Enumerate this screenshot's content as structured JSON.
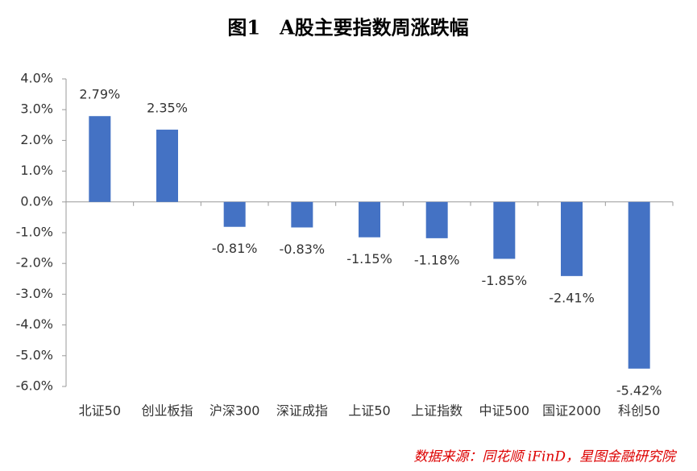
{
  "chart_data": {
    "type": "bar",
    "title": "图1　A股主要指数周涨跌幅",
    "source": "数据来源：同花顺 iFinD，星图金融研究院",
    "categories": [
      "北证50",
      "创业板指",
      "沪深300",
      "深证成指",
      "上证50",
      "上证指数",
      "中证500",
      "国证2000",
      "科创50"
    ],
    "values": [
      2.79,
      2.35,
      -0.81,
      -0.83,
      -1.15,
      -1.18,
      -1.85,
      -2.41,
      -5.42
    ],
    "value_labels": [
      "2.79%",
      "2.35%",
      "-0.81%",
      "-0.83%",
      "-1.15%",
      "-1.18%",
      "-1.85%",
      "-2.41%",
      "-5.42%"
    ],
    "color": "#4472c4",
    "ylim": [
      -6,
      4
    ],
    "yticks": [
      {
        "value": 4,
        "label": "4.0%"
      },
      {
        "value": 3,
        "label": "3.0%"
      },
      {
        "value": 2,
        "label": "2.0%"
      },
      {
        "value": 1,
        "label": "1.0%"
      },
      {
        "value": 0,
        "label": "0.0%"
      },
      {
        "value": -1,
        "label": "-1.0%"
      },
      {
        "value": -2,
        "label": "-2.0%"
      },
      {
        "value": -3,
        "label": "-3.0%"
      },
      {
        "value": -4,
        "label": "-4.0%"
      },
      {
        "value": -5,
        "label": "-5.0%"
      },
      {
        "value": -6,
        "label": "-6.0%"
      }
    ],
    "grid": false
  }
}
